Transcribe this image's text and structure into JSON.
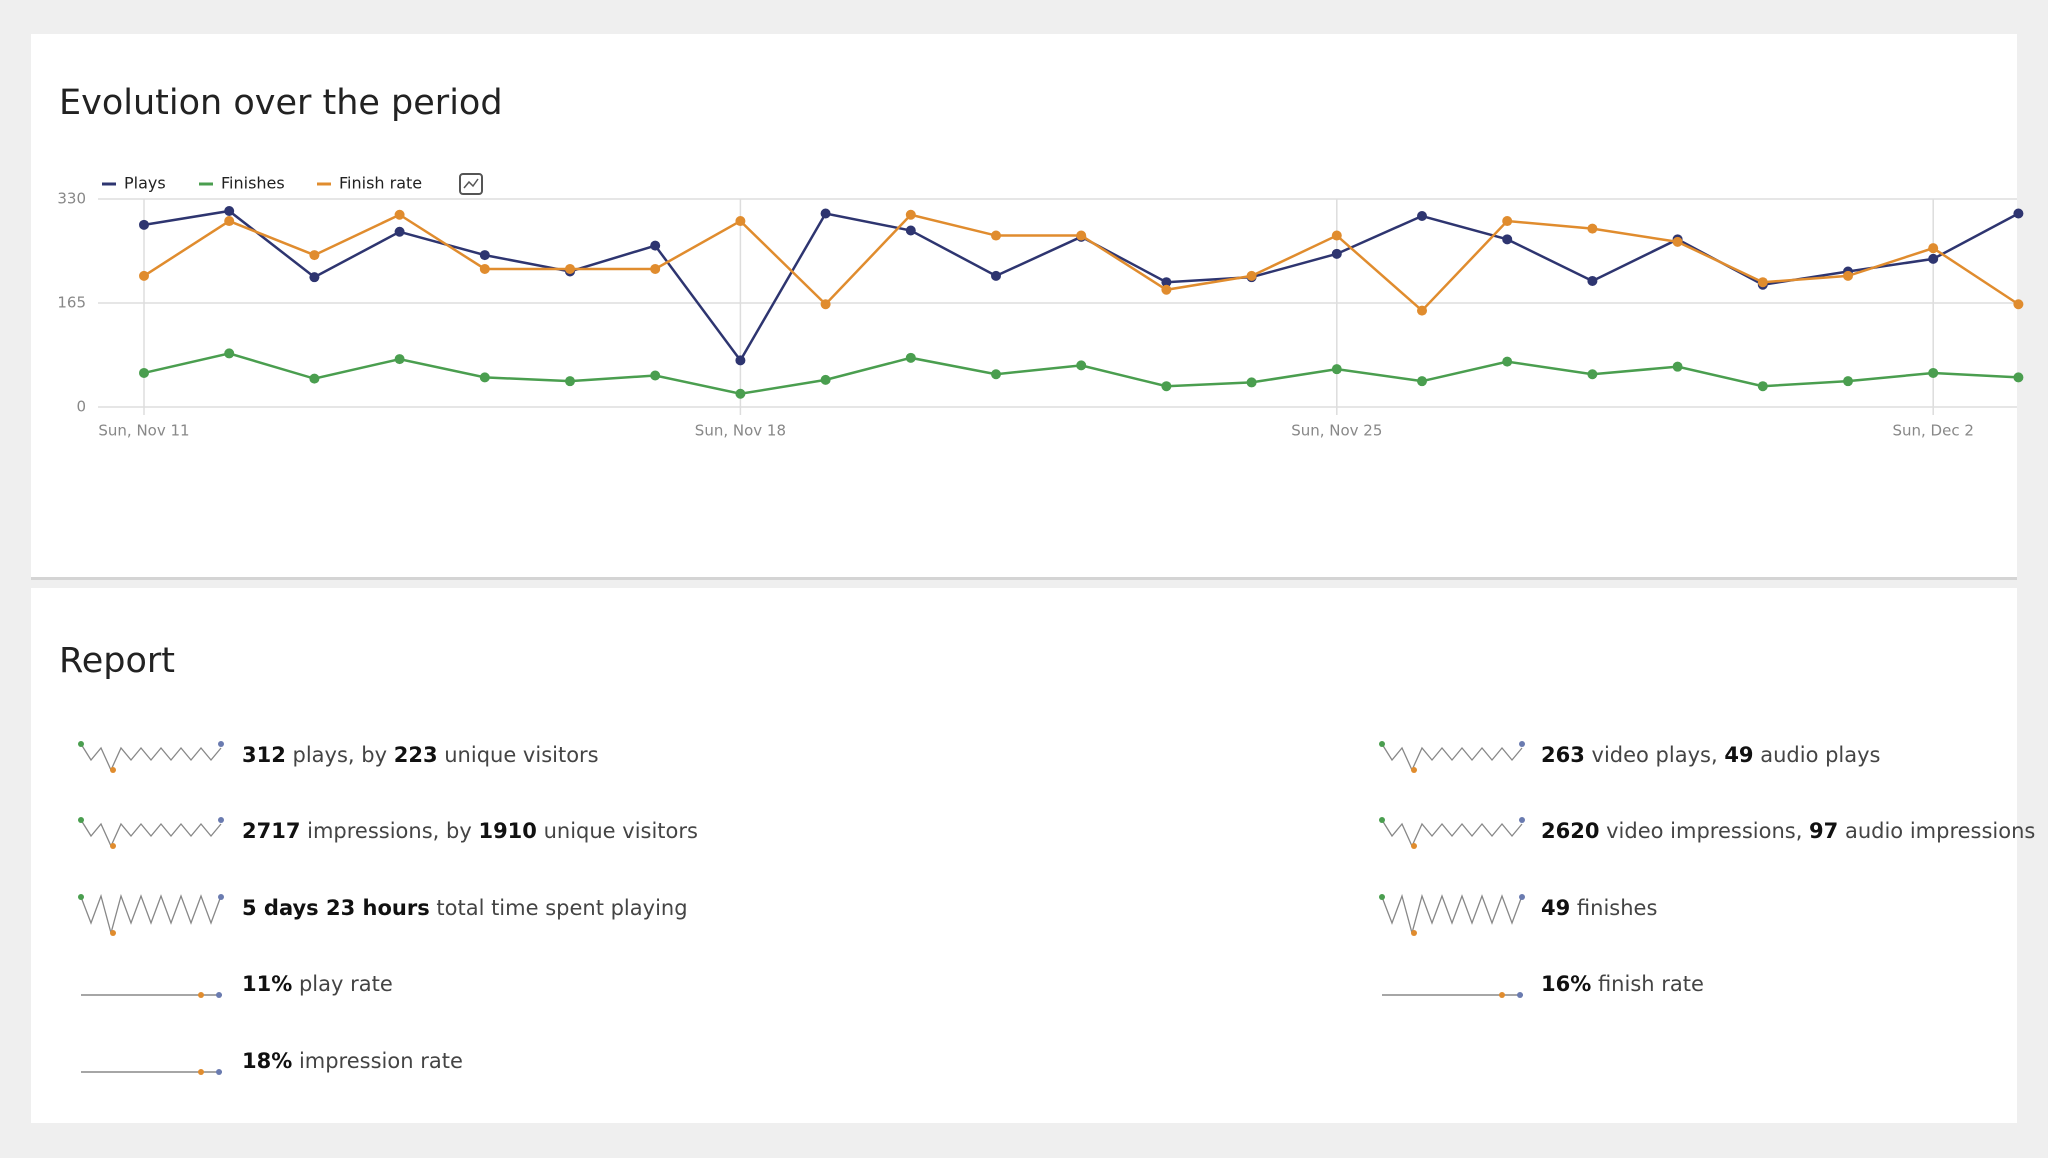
{
  "chart_data": {
    "type": "line",
    "title": "Evolution over the period",
    "categories": [
      "Sun, Nov 11",
      null,
      null,
      null,
      null,
      null,
      null,
      "Sun, Nov 18",
      null,
      null,
      null,
      null,
      null,
      null,
      "Sun, Nov 25",
      null,
      null,
      null,
      null,
      null,
      null,
      "Sun, Dec 2",
      null
    ],
    "series": [
      {
        "name": "Plays",
        "color": "#2e3570",
        "values": [
          289,
          311,
          206,
          278,
          241,
          215,
          256,
          74,
          307,
          280,
          208,
          270,
          198,
          206,
          243,
          303,
          266,
          200,
          266,
          194,
          215,
          235,
          307
        ]
      },
      {
        "name": "Finishes",
        "color": "#4a9e4f",
        "values": [
          54,
          85,
          45,
          76,
          47,
          41,
          50,
          21,
          43,
          78,
          52,
          66,
          33,
          39,
          60,
          41,
          72,
          52,
          64,
          33,
          41,
          54,
          47
        ]
      },
      {
        "name": "Finish rate",
        "color": "#e08c2e",
        "values": [
          208,
          295,
          241,
          305,
          219,
          219,
          219,
          295,
          163,
          305,
          272,
          272,
          186,
          208,
          272,
          153,
          295,
          283,
          262,
          198,
          208,
          252,
          163
        ]
      }
    ],
    "ylim": [
      0,
      330
    ],
    "yticks": [
      0,
      165,
      330
    ],
    "grid": true,
    "legend": "top-left"
  },
  "report": {
    "title": "Report",
    "left": [
      [
        {
          "text": "312",
          "bold": true
        },
        {
          "text": " plays, by ",
          "bold": false
        },
        {
          "text": "223",
          "bold": true
        },
        {
          "text": " unique visitors",
          "bold": false
        }
      ],
      [
        {
          "text": "2717",
          "bold": true
        },
        {
          "text": " impressions, by ",
          "bold": false
        },
        {
          "text": "1910",
          "bold": true
        },
        {
          "text": " unique visitors",
          "bold": false
        }
      ],
      [
        {
          "text": "5 days 23 hours",
          "bold": true
        },
        {
          "text": " total time spent playing",
          "bold": false
        }
      ],
      [
        {
          "text": "11%",
          "bold": true
        },
        {
          "text": " play rate",
          "bold": false
        }
      ],
      [
        {
          "text": "18%",
          "bold": true
        },
        {
          "text": " impression rate",
          "bold": false
        }
      ]
    ],
    "right": [
      [
        {
          "text": "263",
          "bold": true
        },
        {
          "text": " video plays, ",
          "bold": false
        },
        {
          "text": "49",
          "bold": true
        },
        {
          "text": " audio plays",
          "bold": false
        }
      ],
      [
        {
          "text": "2620",
          "bold": true
        },
        {
          "text": " video impressions, ",
          "bold": false
        },
        {
          "text": "97",
          "bold": true
        },
        {
          "text": " audio impressions",
          "bold": false
        }
      ],
      [
        {
          "text": "49",
          "bold": true
        },
        {
          "text": " finishes",
          "bold": false
        }
      ],
      [
        {
          "text": "16%",
          "bold": true
        },
        {
          "text": " finish rate",
          "bold": false
        }
      ]
    ]
  }
}
